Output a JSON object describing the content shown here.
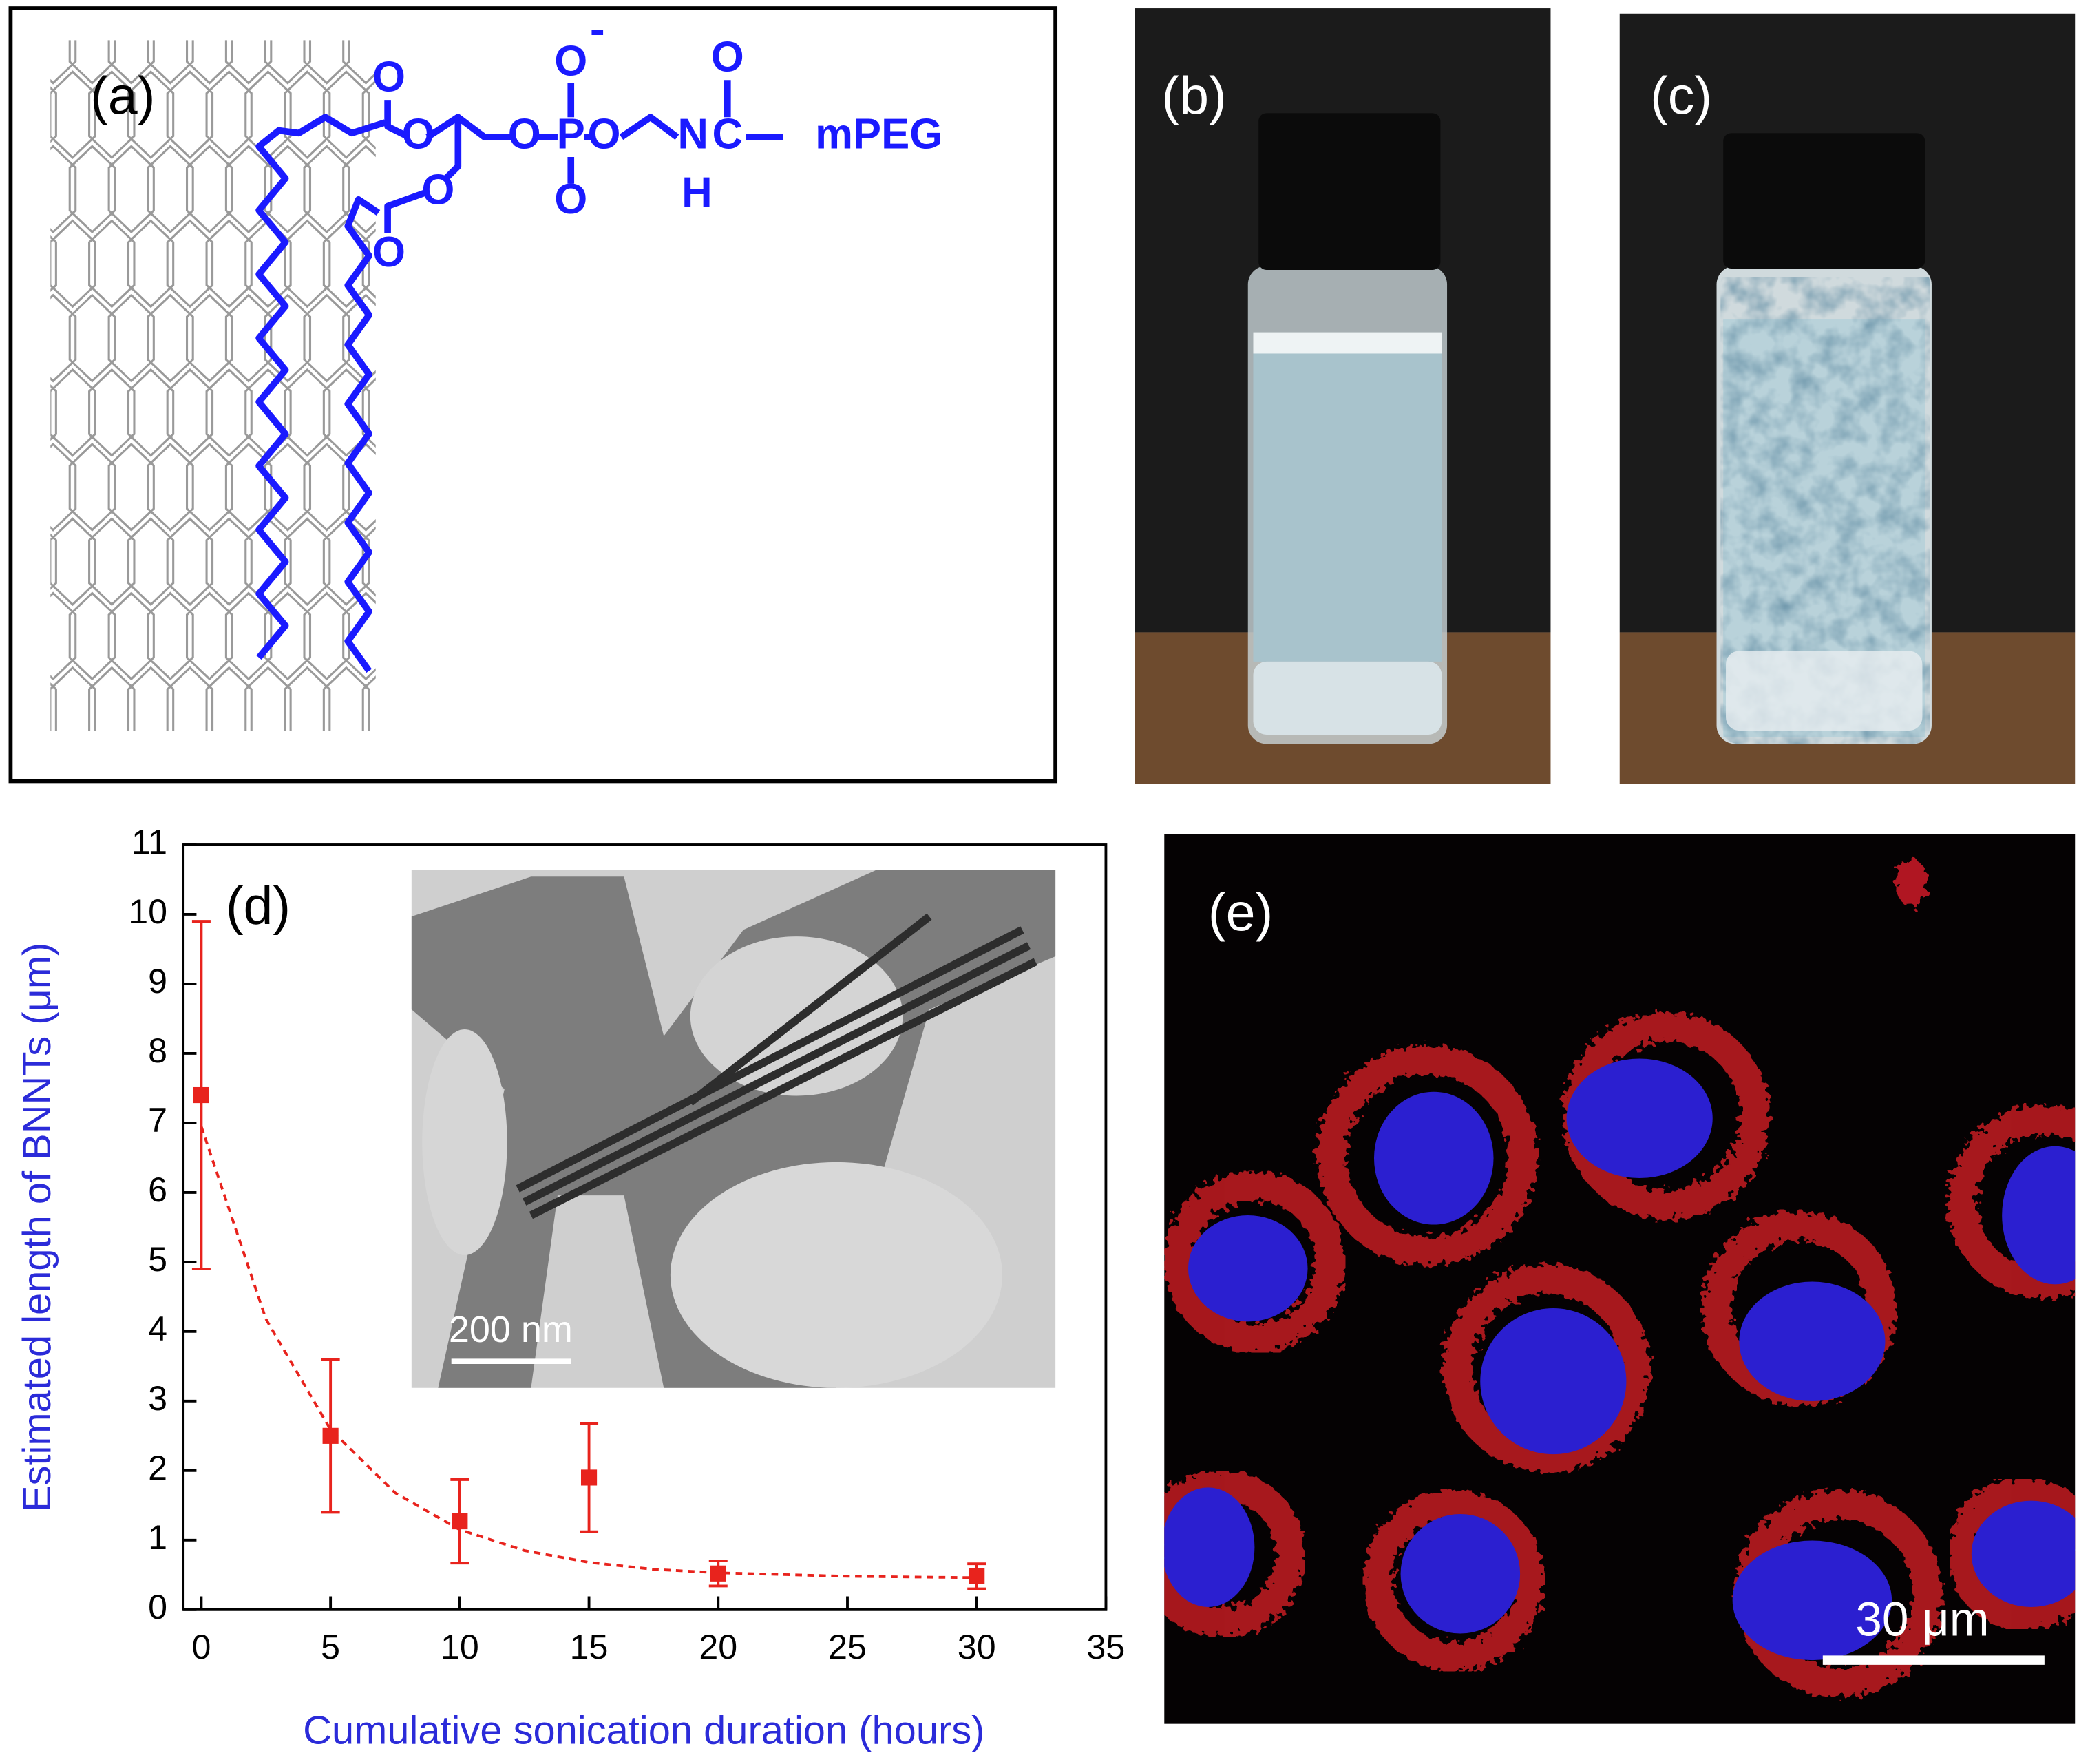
{
  "panels": {
    "a": {
      "label": "(a)",
      "atoms": [
        "O",
        "O",
        "O",
        "O",
        "O",
        "O",
        "P",
        "O",
        "O",
        "N",
        "H",
        "C",
        "O",
        "mPEG"
      ],
      "charge": "-"
    },
    "b": {
      "label": "(b)"
    },
    "c": {
      "label": "(c)"
    },
    "e": {
      "label": "(e)",
      "scale_bar": "30 μm"
    }
  },
  "chart_data": {
    "type": "scatter",
    "label": "(d)",
    "xlabel": "Cumulative sonication duration (hours)",
    "ylabel": "Estimated length of BNNTs (μm)",
    "x": [
      0,
      5,
      10,
      15,
      20,
      30
    ],
    "values": [
      7.4,
      2.5,
      1.27,
      1.9,
      0.52,
      0.48
    ],
    "errors": [
      2.5,
      1.1,
      0.6,
      0.78,
      0.18,
      0.18
    ],
    "color": "#e8231d",
    "label_color": "#2b2bd9",
    "fit_curve": {
      "x": [
        0,
        2.5,
        5,
        7.5,
        10,
        12.5,
        15,
        17.5,
        20,
        25,
        30
      ],
      "values": [
        6.95,
        4.18,
        2.59,
        1.68,
        1.15,
        0.85,
        0.68,
        0.58,
        0.53,
        0.48,
        0.46
      ]
    },
    "inset_scale_bar": "200 nm",
    "xlim": [
      -0.7,
      35
    ],
    "ylim": [
      0,
      11
    ],
    "xticks": [
      0,
      5,
      10,
      15,
      20,
      25,
      30,
      35
    ],
    "yticks": [
      0,
      1,
      2,
      3,
      4,
      5,
      6,
      7,
      8,
      9,
      10,
      11
    ]
  }
}
